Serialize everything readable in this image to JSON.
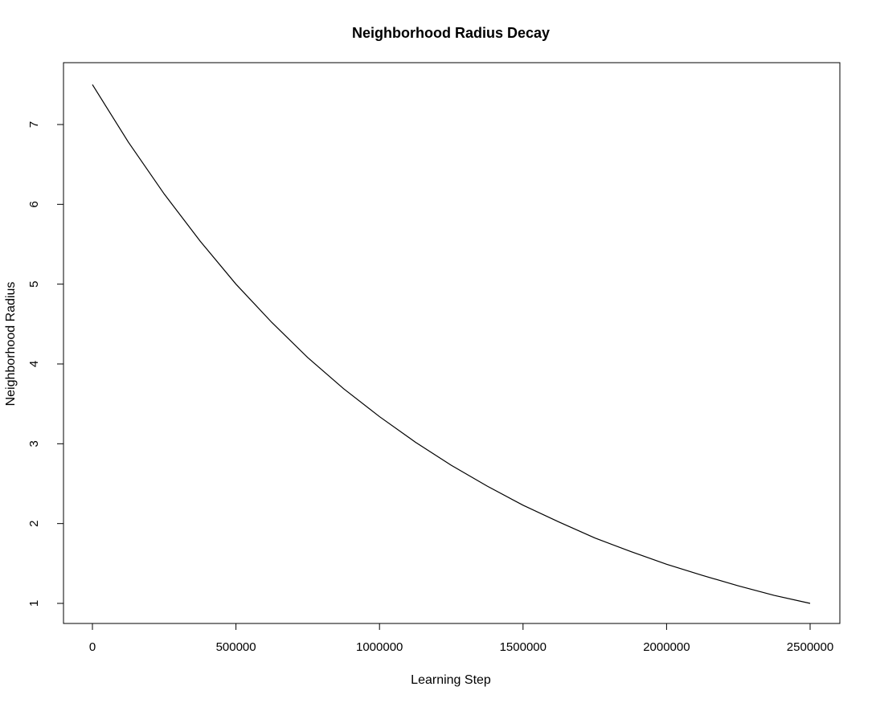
{
  "chart_data": {
    "type": "line",
    "title": "Neighborhood Radius Decay",
    "xlabel": "Learning Step",
    "ylabel": "Neighborhood Radius",
    "xlim": [
      0,
      2500000
    ],
    "ylim": [
      1,
      7.5
    ],
    "x_ticks": [
      0,
      500000,
      1000000,
      1500000,
      2000000,
      2500000
    ],
    "x_tick_labels": [
      "0",
      "500000",
      "1000000",
      "1500000",
      "2000000",
      "2500000"
    ],
    "y_ticks": [
      1,
      2,
      3,
      4,
      5,
      6,
      7
    ],
    "y_tick_labels": [
      "1",
      "2",
      "3",
      "4",
      "5",
      "6",
      "7"
    ],
    "grid": false,
    "legend": "none",
    "line_color": "#000000",
    "series": [
      {
        "x": [
          0,
          125000,
          250000,
          375000,
          500000,
          625000,
          750000,
          875000,
          1000000,
          1125000,
          1250000,
          1375000,
          1500000,
          1625000,
          1750000,
          1875000,
          2000000,
          2125000,
          2250000,
          2375000,
          2500000
        ],
        "y": [
          7.5,
          6.78,
          6.13,
          5.54,
          5.0,
          4.52,
          4.08,
          3.69,
          3.34,
          3.02,
          2.73,
          2.47,
          2.23,
          2.02,
          1.82,
          1.65,
          1.49,
          1.35,
          1.22,
          1.1,
          1.0
        ]
      }
    ]
  }
}
